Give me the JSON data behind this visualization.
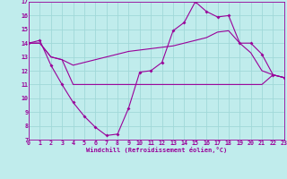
{
  "xlabel": "Windchill (Refroidissement éolien,°C)",
  "bg_color": "#c0ecec",
  "grid_color": "#a0d8d8",
  "line_color": "#990099",
  "ylim": [
    7,
    17
  ],
  "xlim": [
    0,
    23
  ],
  "yticks": [
    7,
    8,
    9,
    10,
    11,
    12,
    13,
    14,
    15,
    16,
    17
  ],
  "xticks": [
    0,
    1,
    2,
    3,
    4,
    5,
    6,
    7,
    8,
    9,
    10,
    11,
    12,
    13,
    14,
    15,
    16,
    17,
    18,
    19,
    20,
    21,
    22,
    23
  ],
  "line1_x": [
    0,
    1,
    2,
    3,
    4,
    5,
    6,
    7,
    8,
    9,
    10,
    11,
    12,
    13,
    14,
    15,
    16,
    17,
    18,
    19,
    20,
    21,
    22,
    23
  ],
  "line1_y": [
    14.0,
    14.2,
    12.4,
    11.0,
    9.7,
    8.7,
    7.9,
    7.3,
    7.4,
    9.3,
    11.9,
    12.0,
    12.6,
    14.9,
    15.5,
    17.0,
    16.3,
    15.9,
    16.0,
    14.0,
    14.0,
    13.2,
    11.7,
    11.5
  ],
  "line2_x": [
    0,
    1,
    2,
    3,
    4,
    9,
    10,
    11,
    12,
    13,
    14,
    15,
    16,
    17,
    18,
    19,
    20,
    21,
    22,
    23
  ],
  "line2_y": [
    14.0,
    14.0,
    13.0,
    12.8,
    11.0,
    11.0,
    11.0,
    11.0,
    11.0,
    11.0,
    11.0,
    11.0,
    11.0,
    11.0,
    11.0,
    11.0,
    11.0,
    11.0,
    11.7,
    11.5
  ],
  "line3_x": [
    0,
    1,
    2,
    3,
    4,
    5,
    6,
    7,
    8,
    9,
    10,
    11,
    12,
    13,
    14,
    15,
    16,
    17,
    18,
    19,
    20,
    21,
    22,
    23
  ],
  "line3_y": [
    14.0,
    14.0,
    13.0,
    12.8,
    12.4,
    12.6,
    12.8,
    13.0,
    13.2,
    13.4,
    13.5,
    13.6,
    13.7,
    13.8,
    14.0,
    14.2,
    14.4,
    14.8,
    14.9,
    14.0,
    13.3,
    12.0,
    11.7,
    11.5
  ]
}
